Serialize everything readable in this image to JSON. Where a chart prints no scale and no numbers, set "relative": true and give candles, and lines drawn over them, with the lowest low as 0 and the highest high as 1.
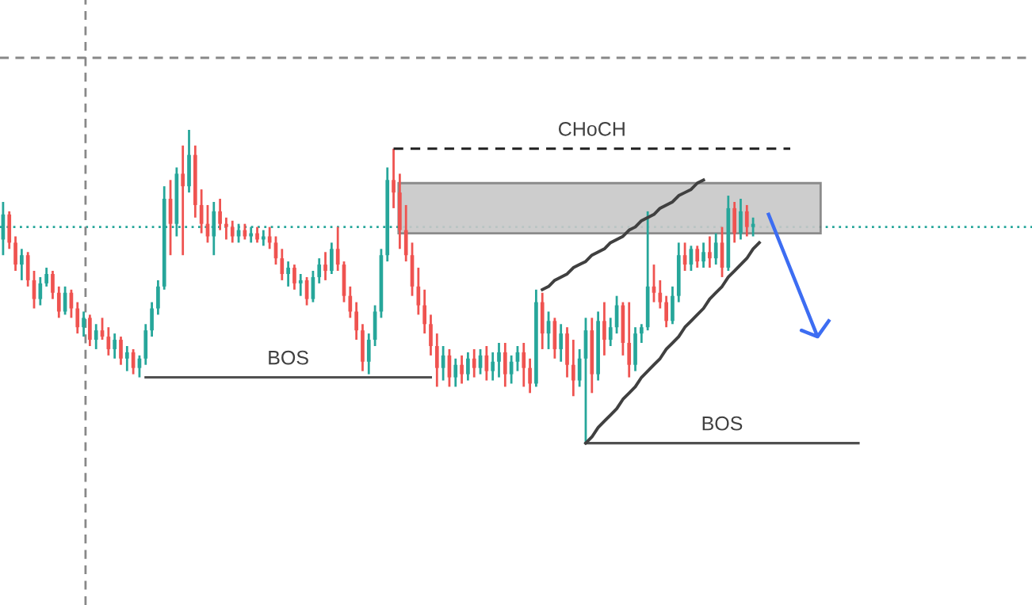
{
  "chart_data": {
    "type": "candlestick",
    "relative": true,
    "categories": [
      null,
      null,
      null,
      null,
      null,
      null,
      null,
      null,
      null,
      null,
      null,
      null,
      null,
      null,
      null,
      null,
      null,
      null,
      null,
      null,
      null,
      null,
      null,
      null,
      null,
      null,
      null,
      null,
      null,
      null,
      null,
      null,
      null,
      null,
      null,
      null,
      null,
      null,
      null,
      null,
      null,
      null,
      null,
      null,
      null,
      null,
      null,
      null,
      null,
      null,
      null,
      null,
      null,
      null,
      null,
      null,
      null,
      null,
      null,
      null,
      null,
      null,
      null,
      null,
      null,
      null,
      null,
      null,
      null,
      null,
      null,
      null,
      null,
      null,
      null,
      null,
      null,
      null,
      null,
      null,
      null,
      null,
      null,
      null,
      null,
      null,
      null,
      null,
      null,
      null,
      null,
      null,
      null,
      null,
      null,
      null,
      null,
      null,
      null,
      null,
      null,
      null,
      null,
      null,
      null,
      null,
      null,
      null,
      null,
      null,
      null,
      null,
      null,
      null,
      null,
      null,
      null,
      null,
      null,
      null,
      null,
      null,
      null,
      null,
      null,
      null,
      null,
      null,
      null,
      null,
      null,
      null,
      null,
      null,
      null,
      null,
      null,
      null,
      null,
      null
    ],
    "ohlc": [
      [
        0.65,
        0.77,
        0.6,
        0.73
      ],
      [
        0.73,
        0.74,
        0.62,
        0.64
      ],
      [
        0.64,
        0.66,
        0.55,
        0.57
      ],
      [
        0.57,
        0.62,
        0.52,
        0.6
      ],
      [
        0.6,
        0.61,
        0.5,
        0.52
      ],
      [
        0.52,
        0.55,
        0.43,
        0.46
      ],
      [
        0.46,
        0.53,
        0.44,
        0.51
      ],
      [
        0.51,
        0.56,
        0.5,
        0.54
      ],
      [
        0.54,
        0.55,
        0.46,
        0.48
      ],
      [
        0.48,
        0.5,
        0.4,
        0.42
      ],
      [
        0.42,
        0.5,
        0.41,
        0.48
      ],
      [
        0.48,
        0.49,
        0.4,
        0.43
      ],
      [
        0.43,
        0.45,
        0.35,
        0.37
      ],
      [
        0.37,
        0.42,
        0.34,
        0.4
      ],
      [
        0.4,
        0.41,
        0.31,
        0.33
      ],
      [
        0.33,
        0.38,
        0.3,
        0.36
      ],
      [
        0.36,
        0.4,
        0.33,
        0.34
      ],
      [
        0.34,
        0.37,
        0.28,
        0.3
      ],
      [
        0.3,
        0.35,
        0.27,
        0.33
      ],
      [
        0.33,
        0.34,
        0.25,
        0.27
      ],
      [
        0.27,
        0.31,
        0.23,
        0.29
      ],
      [
        0.29,
        0.3,
        0.22,
        0.24
      ],
      [
        0.24,
        0.28,
        0.21,
        0.27
      ],
      [
        0.27,
        0.38,
        0.25,
        0.36
      ],
      [
        0.36,
        0.45,
        0.34,
        0.43
      ],
      [
        0.43,
        0.52,
        0.41,
        0.5
      ],
      [
        0.5,
        0.82,
        0.49,
        0.78
      ],
      [
        0.78,
        0.84,
        0.6,
        0.7
      ],
      [
        0.7,
        0.88,
        0.66,
        0.86
      ],
      [
        0.86,
        0.95,
        0.6,
        0.82
      ],
      [
        0.82,
        1.0,
        0.8,
        0.92
      ],
      [
        0.92,
        0.95,
        0.72,
        0.76
      ],
      [
        0.76,
        0.81,
        0.67,
        0.7
      ],
      [
        0.7,
        0.76,
        0.64,
        0.66
      ],
      [
        0.66,
        0.77,
        0.6,
        0.74
      ],
      [
        0.74,
        0.78,
        0.68,
        0.7
      ],
      [
        0.7,
        0.72,
        0.65,
        0.69
      ],
      [
        0.69,
        0.71,
        0.64,
        0.66
      ],
      [
        0.66,
        0.7,
        0.64,
        0.68
      ],
      [
        0.68,
        0.7,
        0.65,
        0.66
      ],
      [
        0.66,
        0.69,
        0.64,
        0.67
      ],
      [
        0.67,
        0.69,
        0.64,
        0.65
      ],
      [
        0.65,
        0.68,
        0.63,
        0.66
      ],
      [
        0.66,
        0.69,
        0.62,
        0.64
      ],
      [
        0.64,
        0.66,
        0.57,
        0.59
      ],
      [
        0.59,
        0.62,
        0.52,
        0.54
      ],
      [
        0.54,
        0.58,
        0.5,
        0.56
      ],
      [
        0.56,
        0.57,
        0.49,
        0.51
      ],
      [
        0.51,
        0.54,
        0.47,
        0.52
      ],
      [
        0.52,
        0.53,
        0.44,
        0.46
      ],
      [
        0.46,
        0.55,
        0.45,
        0.53
      ],
      [
        0.53,
        0.59,
        0.51,
        0.57
      ],
      [
        0.57,
        0.61,
        0.52,
        0.55
      ],
      [
        0.55,
        0.64,
        0.54,
        0.62
      ],
      [
        0.62,
        0.69,
        0.55,
        0.57
      ],
      [
        0.57,
        0.58,
        0.45,
        0.47
      ],
      [
        0.47,
        0.5,
        0.4,
        0.42
      ],
      [
        0.42,
        0.45,
        0.33,
        0.36
      ],
      [
        0.36,
        0.38,
        0.23,
        0.26
      ],
      [
        0.26,
        0.35,
        0.22,
        0.33
      ],
      [
        0.33,
        0.44,
        0.31,
        0.42
      ],
      [
        0.42,
        0.62,
        0.4,
        0.6
      ],
      [
        0.6,
        0.88,
        0.58,
        0.84
      ],
      [
        0.84,
        0.94,
        0.75,
        0.8
      ],
      [
        0.8,
        0.86,
        0.62,
        0.68
      ],
      [
        0.68,
        0.76,
        0.58,
        0.6
      ],
      [
        0.6,
        0.64,
        0.47,
        0.5
      ],
      [
        0.5,
        0.56,
        0.41,
        0.44
      ],
      [
        0.44,
        0.49,
        0.35,
        0.38
      ],
      [
        0.38,
        0.41,
        0.28,
        0.31
      ],
      [
        0.31,
        0.35,
        0.18,
        0.24
      ],
      [
        0.24,
        0.31,
        0.2,
        0.28
      ],
      [
        0.28,
        0.3,
        0.18,
        0.21
      ],
      [
        0.21,
        0.27,
        0.18,
        0.25
      ],
      [
        0.25,
        0.28,
        0.19,
        0.22
      ],
      [
        0.22,
        0.29,
        0.2,
        0.27
      ],
      [
        0.27,
        0.3,
        0.21,
        0.24
      ],
      [
        0.24,
        0.3,
        0.22,
        0.28
      ],
      [
        0.28,
        0.31,
        0.2,
        0.23
      ],
      [
        0.23,
        0.29,
        0.2,
        0.26
      ],
      [
        0.26,
        0.32,
        0.21,
        0.29
      ],
      [
        0.29,
        0.32,
        0.18,
        0.22
      ],
      [
        0.22,
        0.28,
        0.19,
        0.26
      ],
      [
        0.26,
        0.31,
        0.23,
        0.29
      ],
      [
        0.29,
        0.32,
        0.18,
        0.24
      ],
      [
        0.24,
        0.27,
        0.16,
        0.19
      ],
      [
        0.19,
        0.49,
        0.18,
        0.45
      ],
      [
        0.45,
        0.48,
        0.3,
        0.35
      ],
      [
        0.35,
        0.42,
        0.3,
        0.39
      ],
      [
        0.39,
        0.4,
        0.27,
        0.3
      ],
      [
        0.3,
        0.38,
        0.26,
        0.35
      ],
      [
        0.35,
        0.37,
        0.21,
        0.25
      ],
      [
        0.25,
        0.33,
        0.15,
        0.2
      ],
      [
        0.2,
        0.3,
        0.18,
        0.27
      ],
      [
        0.27,
        0.4,
        0.0,
        0.36
      ],
      [
        0.36,
        0.4,
        0.16,
        0.22
      ],
      [
        0.22,
        0.42,
        0.2,
        0.39
      ],
      [
        0.39,
        0.45,
        0.28,
        0.33
      ],
      [
        0.33,
        0.4,
        0.31,
        0.37
      ],
      [
        0.37,
        0.47,
        0.35,
        0.44
      ],
      [
        0.44,
        0.45,
        0.28,
        0.32
      ],
      [
        0.32,
        0.45,
        0.21,
        0.25
      ],
      [
        0.25,
        0.37,
        0.23,
        0.35
      ],
      [
        0.35,
        0.38,
        0.32,
        0.37
      ],
      [
        0.37,
        0.74,
        0.36,
        0.5
      ],
      [
        0.5,
        0.57,
        0.45,
        0.48
      ],
      [
        0.48,
        0.52,
        0.43,
        0.45
      ],
      [
        0.45,
        0.47,
        0.37,
        0.39
      ],
      [
        0.39,
        0.5,
        0.38,
        0.47
      ],
      [
        0.47,
        0.64,
        0.45,
        0.6
      ],
      [
        0.6,
        0.64,
        0.55,
        0.57
      ],
      [
        0.57,
        0.63,
        0.55,
        0.62
      ],
      [
        0.62,
        0.63,
        0.56,
        0.58
      ],
      [
        0.58,
        0.64,
        0.56,
        0.61
      ],
      [
        0.61,
        0.66,
        0.56,
        0.59
      ],
      [
        0.59,
        0.67,
        0.57,
        0.64
      ],
      [
        0.64,
        0.69,
        0.53,
        0.56
      ],
      [
        0.56,
        0.79,
        0.55,
        0.75
      ],
      [
        0.75,
        0.77,
        0.64,
        0.67
      ],
      [
        0.67,
        0.78,
        0.65,
        0.74
      ],
      [
        0.74,
        0.76,
        0.66,
        0.69
      ],
      [
        0.69,
        0.72,
        0.66,
        0.7
      ],
      null,
      null,
      null,
      null,
      null,
      null,
      null,
      null,
      null,
      null,
      null,
      null,
      null,
      null,
      null,
      null,
      null,
      null
    ],
    "series": [
      {
        "type": "line",
        "name": "BOS",
        "color": "#505050",
        "line_style": "solid",
        "values": [
          null,
          null,
          null,
          null,
          null,
          null,
          null,
          null,
          null,
          null,
          null,
          null,
          null,
          null,
          null,
          null,
          null,
          null,
          null,
          null,
          null,
          null,
          null,
          0.21,
          0.21,
          0.21,
          0.21,
          0.21,
          0.21,
          0.21,
          0.21,
          0.21,
          0.21,
          0.21,
          0.21,
          0.21,
          0.21,
          0.21,
          0.21,
          0.21,
          0.21,
          0.21,
          0.21,
          0.21,
          0.21,
          0.21,
          0.21,
          0.21,
          0.21,
          0.21,
          0.21,
          0.21,
          0.21,
          0.21,
          0.21,
          0.21,
          0.21,
          0.21,
          0.21,
          0.21,
          0.21,
          0.21,
          0.21,
          0.21,
          0.21,
          0.21,
          0.21,
          0.21,
          0.21,
          0.21,
          null,
          null,
          null,
          null,
          null,
          null,
          null,
          null,
          null,
          null,
          null,
          null,
          null,
          null,
          null,
          null,
          null,
          null,
          null,
          null,
          null,
          null,
          null,
          null,
          null,
          null,
          null,
          null,
          null,
          null,
          null,
          null,
          null,
          null,
          null,
          null,
          null,
          null,
          null,
          null,
          null,
          null,
          null,
          null,
          null,
          null,
          null,
          null,
          null,
          null,
          null,
          null,
          null,
          null,
          null,
          null,
          null,
          null,
          null,
          null,
          null,
          null,
          null,
          null,
          null,
          null,
          null,
          null,
          null,
          null
        ]
      },
      {
        "type": "line",
        "name": "BOS",
        "color": "#505050",
        "line_style": "solid",
        "values": [
          null,
          null,
          null,
          null,
          null,
          null,
          null,
          null,
          null,
          null,
          null,
          null,
          null,
          null,
          null,
          null,
          null,
          null,
          null,
          null,
          null,
          null,
          null,
          null,
          null,
          null,
          null,
          null,
          null,
          null,
          null,
          null,
          null,
          null,
          null,
          null,
          null,
          null,
          null,
          null,
          null,
          null,
          null,
          null,
          null,
          null,
          null,
          null,
          null,
          null,
          null,
          null,
          null,
          null,
          null,
          null,
          null,
          null,
          null,
          null,
          null,
          null,
          null,
          null,
          null,
          null,
          null,
          null,
          null,
          null,
          null,
          null,
          null,
          null,
          null,
          null,
          null,
          null,
          null,
          null,
          null,
          null,
          null,
          null,
          null,
          null,
          null,
          null,
          null,
          null,
          null,
          null,
          null,
          null,
          0,
          0,
          0,
          0,
          0,
          0,
          0,
          0,
          0,
          0,
          0,
          0,
          0,
          0,
          0,
          0,
          0,
          0,
          0,
          0,
          0,
          0,
          0,
          0,
          0,
          0,
          0,
          0,
          0,
          0,
          0,
          0,
          0,
          0,
          0,
          0,
          0,
          0,
          0,
          0,
          0,
          0,
          0,
          0,
          0,
          null
        ]
      },
      {
        "type": "line",
        "name": "CHoCH",
        "color": "#202020",
        "line_style": "dashed",
        "values": [
          null,
          null,
          null,
          null,
          null,
          null,
          null,
          null,
          null,
          null,
          null,
          null,
          null,
          null,
          null,
          null,
          null,
          null,
          null,
          null,
          null,
          null,
          null,
          null,
          null,
          null,
          null,
          null,
          null,
          null,
          null,
          null,
          null,
          null,
          null,
          null,
          null,
          null,
          null,
          null,
          null,
          null,
          null,
          null,
          null,
          null,
          null,
          null,
          null,
          null,
          null,
          null,
          null,
          null,
          null,
          null,
          null,
          null,
          null,
          null,
          null,
          null,
          null,
          0.94,
          0.94,
          0.94,
          0.94,
          0.94,
          0.94,
          0.94,
          0.94,
          0.94,
          0.94,
          0.94,
          0.94,
          0.94,
          0.94,
          0.94,
          0.94,
          0.94,
          0.94,
          0.94,
          0.94,
          0.94,
          0.94,
          0.94,
          0.94,
          0.94,
          0.94,
          0.94,
          0.94,
          0.94,
          0.94,
          0.94,
          0.94,
          0.94,
          0.94,
          0.94,
          0.94,
          0.94,
          0.94,
          0.94,
          0.94,
          0.94,
          0.94,
          0.94,
          0.94,
          0.94,
          0.94,
          0.94,
          0.94,
          0.94,
          0.94,
          0.94,
          0.94,
          0.94,
          0.94,
          0.94,
          0.94,
          0.94,
          0.94,
          0.94,
          0.94,
          0.94,
          0.94,
          0.94,
          0.94,
          0.94,
          null,
          null,
          null,
          null,
          null,
          null,
          null,
          null,
          null,
          null,
          null,
          null
        ]
      },
      {
        "type": "line",
        "color": "#404040",
        "line_style": "solid",
        "values": [
          null,
          null,
          null,
          null,
          null,
          null,
          null,
          null,
          null,
          null,
          null,
          null,
          null,
          null,
          null,
          null,
          null,
          null,
          null,
          null,
          null,
          null,
          null,
          null,
          null,
          null,
          null,
          null,
          null,
          null,
          null,
          null,
          null,
          null,
          null,
          null,
          null,
          null,
          null,
          null,
          null,
          null,
          null,
          null,
          null,
          null,
          null,
          null,
          null,
          null,
          null,
          null,
          null,
          null,
          null,
          null,
          null,
          null,
          null,
          null,
          null,
          null,
          null,
          null,
          null,
          null,
          null,
          null,
          null,
          null,
          null,
          null,
          null,
          null,
          null,
          null,
          null,
          null,
          null,
          null,
          null,
          null,
          null,
          null,
          null,
          null,
          null,
          0.49,
          0.5,
          0.52,
          0.53,
          0.54,
          0.56,
          0.57,
          0.58,
          0.6,
          0.61,
          0.62,
          0.64,
          0.65,
          0.66,
          0.68,
          0.69,
          0.71,
          0.72,
          0.73,
          0.75,
          0.76,
          0.77,
          0.79,
          0.8,
          0.81,
          0.83,
          0.84,
          null,
          null,
          null,
          null,
          null,
          null,
          null,
          null,
          null,
          null,
          null,
          null,
          null,
          null,
          null,
          null,
          null,
          null,
          null,
          null,
          null,
          null,
          null,
          null,
          null,
          null
        ]
      },
      {
        "type": "line",
        "color": "#404040",
        "line_style": "solid",
        "values": [
          null,
          null,
          null,
          null,
          null,
          null,
          null,
          null,
          null,
          null,
          null,
          null,
          null,
          null,
          null,
          null,
          null,
          null,
          null,
          null,
          null,
          null,
          null,
          null,
          null,
          null,
          null,
          null,
          null,
          null,
          null,
          null,
          null,
          null,
          null,
          null,
          null,
          null,
          null,
          null,
          null,
          null,
          null,
          null,
          null,
          null,
          null,
          null,
          null,
          null,
          null,
          null,
          null,
          null,
          null,
          null,
          null,
          null,
          null,
          null,
          null,
          null,
          null,
          null,
          null,
          null,
          null,
          null,
          null,
          null,
          null,
          null,
          null,
          null,
          null,
          null,
          null,
          null,
          null,
          null,
          null,
          null,
          null,
          null,
          null,
          null,
          null,
          null,
          null,
          null,
          null,
          null,
          null,
          null,
          0,
          0.02,
          0.05,
          0.07,
          0.09,
          0.11,
          0.14,
          0.16,
          0.18,
          0.21,
          0.23,
          0.25,
          0.27,
          0.3,
          0.32,
          0.34,
          0.37,
          0.39,
          0.41,
          0.43,
          0.46,
          0.48,
          0.5,
          0.53,
          0.55,
          0.57,
          0.59,
          0.62,
          0.64,
          null,
          null,
          null,
          null,
          null,
          null,
          null,
          null,
          null,
          null,
          null,
          null,
          null,
          null,
          null,
          null,
          null
        ]
      }
    ],
    "ref_lines": [
      {
        "axis": "y",
        "value": 0.69,
        "color": "#26a69a",
        "line_style": "dotted"
      },
      {
        "axis": "y",
        "value": 1.23,
        "color": "#888888",
        "line_style": "dashed"
      }
    ],
    "legend": false
  }
}
